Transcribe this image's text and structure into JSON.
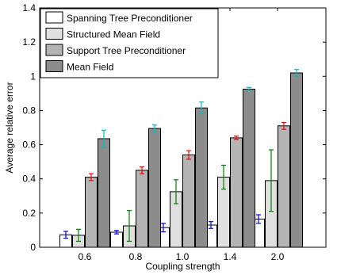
{
  "chart_data": {
    "type": "bar",
    "title": "",
    "xlabel": "Coupling strength",
    "ylabel": "Average relative error",
    "categories": [
      "0.6",
      "0.8",
      "1.0",
      "1.4",
      "2.0"
    ],
    "ylim": [
      0,
      1.4
    ],
    "yticks": [
      "0",
      "0.2",
      "0.4",
      "0.6",
      "0.8",
      "1",
      "1.2",
      "1.4"
    ],
    "grid": false,
    "legend_position": "top-left",
    "series": [
      {
        "name": "Spanning Tree Preconditioner",
        "color": "#ffffff",
        "errorbar_color": "#0000ff",
        "values": [
          0.073,
          0.088,
          0.115,
          0.13,
          0.165
        ],
        "errors": [
          0.02,
          0.01,
          0.025,
          0.02,
          0.025
        ]
      },
      {
        "name": "Structured Mean Field",
        "color": "#e0e0e0",
        "errorbar_color": "#008000",
        "values": [
          0.07,
          0.125,
          0.325,
          0.41,
          0.39
        ],
        "errors": [
          0.035,
          0.09,
          0.07,
          0.07,
          0.18
        ]
      },
      {
        "name": "Support Tree Preconditioner",
        "color": "#b4b4b4",
        "errorbar_color": "#ff0000",
        "values": [
          0.41,
          0.45,
          0.54,
          0.64,
          0.71
        ],
        "errors": [
          0.02,
          0.02,
          0.025,
          0.01,
          0.02
        ]
      },
      {
        "name": "Mean Field",
        "color": "#8c8c8c",
        "errorbar_color": "#00bfbf",
        "values": [
          0.635,
          0.695,
          0.815,
          0.925,
          1.02
        ],
        "errors": [
          0.05,
          0.02,
          0.035,
          0.01,
          0.02
        ]
      }
    ]
  }
}
